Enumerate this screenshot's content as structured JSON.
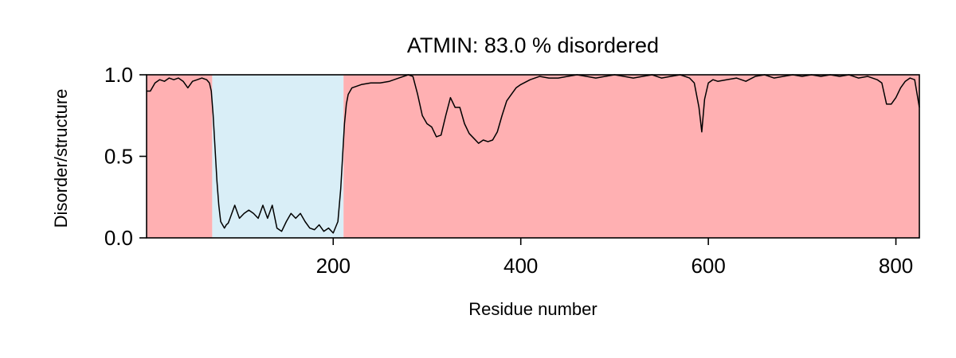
{
  "chart_data": {
    "type": "line",
    "title": "ATMIN: 83.0 % disordered",
    "xlabel": "Residue number",
    "ylabel": "Disorder/structure",
    "xlim": [
      1,
      825
    ],
    "ylim": [
      0,
      1
    ],
    "xticks": [
      200,
      400,
      600,
      800
    ],
    "yticks": [
      0.0,
      0.5,
      1.0
    ],
    "xtick_labels": [
      "200",
      "400",
      "600",
      "800"
    ],
    "ytick_labels": [
      "0.0",
      "0.5",
      "1.0"
    ],
    "grid": false,
    "regions": [
      {
        "kind": "disordered",
        "start": 1,
        "end": 71,
        "color": "#ffb0b2"
      },
      {
        "kind": "structured",
        "start": 71,
        "end": 211,
        "color": "#d9eef7"
      },
      {
        "kind": "disordered",
        "start": 211,
        "end": 825,
        "color": "#ffb0b2"
      }
    ],
    "series": [
      {
        "color": "#000000",
        "x": [
          1,
          5,
          10,
          15,
          20,
          25,
          30,
          35,
          40,
          45,
          50,
          55,
          60,
          65,
          68,
          70,
          72,
          74,
          76,
          78,
          80,
          82,
          84,
          86,
          88,
          90,
          95,
          100,
          105,
          110,
          115,
          120,
          125,
          130,
          135,
          140,
          145,
          150,
          155,
          160,
          165,
          170,
          175,
          180,
          185,
          190,
          195,
          200,
          205,
          208,
          210,
          212,
          214,
          216,
          220,
          230,
          240,
          250,
          260,
          270,
          280,
          285,
          290,
          295,
          300,
          305,
          310,
          315,
          320,
          325,
          330,
          335,
          340,
          345,
          350,
          355,
          360,
          365,
          370,
          375,
          380,
          385,
          390,
          395,
          400,
          410,
          420,
          430,
          440,
          450,
          460,
          470,
          480,
          490,
          500,
          510,
          520,
          530,
          540,
          550,
          560,
          570,
          580,
          585,
          590,
          593,
          596,
          600,
          605,
          610,
          620,
          630,
          640,
          650,
          660,
          670,
          680,
          690,
          700,
          710,
          720,
          730,
          740,
          750,
          760,
          770,
          780,
          785,
          790,
          795,
          800,
          805,
          810,
          815,
          820,
          825
        ],
        "y": [
          0.9,
          0.9,
          0.95,
          0.97,
          0.96,
          0.98,
          0.97,
          0.98,
          0.96,
          0.92,
          0.96,
          0.97,
          0.98,
          0.97,
          0.95,
          0.9,
          0.75,
          0.55,
          0.35,
          0.2,
          0.1,
          0.08,
          0.06,
          0.08,
          0.09,
          0.12,
          0.2,
          0.12,
          0.15,
          0.17,
          0.15,
          0.12,
          0.2,
          0.12,
          0.2,
          0.06,
          0.04,
          0.1,
          0.15,
          0.12,
          0.15,
          0.1,
          0.06,
          0.05,
          0.08,
          0.04,
          0.06,
          0.03,
          0.1,
          0.3,
          0.5,
          0.7,
          0.82,
          0.88,
          0.92,
          0.94,
          0.95,
          0.95,
          0.96,
          0.98,
          1.0,
          0.99,
          0.88,
          0.75,
          0.7,
          0.68,
          0.62,
          0.63,
          0.75,
          0.86,
          0.8,
          0.8,
          0.7,
          0.64,
          0.61,
          0.58,
          0.6,
          0.59,
          0.6,
          0.65,
          0.75,
          0.84,
          0.88,
          0.92,
          0.94,
          0.97,
          0.99,
          0.98,
          0.98,
          0.99,
          1.0,
          0.99,
          0.98,
          0.99,
          1.0,
          0.99,
          0.98,
          0.99,
          1.0,
          0.98,
          0.99,
          1.0,
          0.98,
          0.95,
          0.8,
          0.65,
          0.85,
          0.95,
          0.97,
          0.96,
          0.97,
          0.98,
          0.96,
          0.99,
          1.0,
          0.98,
          0.99,
          1.0,
          0.99,
          1.0,
          0.99,
          1.0,
          0.99,
          1.0,
          0.98,
          0.99,
          0.97,
          0.95,
          0.82,
          0.82,
          0.86,
          0.92,
          0.96,
          0.98,
          0.97,
          0.8
        ]
      }
    ]
  }
}
